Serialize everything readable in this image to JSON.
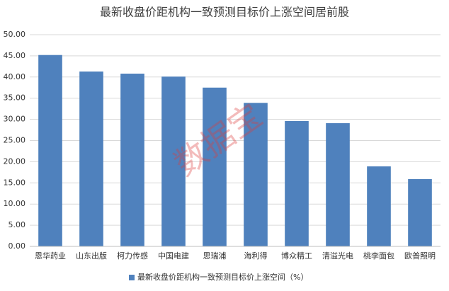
{
  "chart_data": {
    "type": "bar",
    "title": "最新收盘价距机构一致预测目标价上涨空间居前股",
    "watermark": "数据宝",
    "categories": [
      "恩华药业",
      "山东出版",
      "柯力传感",
      "中国电建",
      "思瑞浦",
      "海利得",
      "博众精工",
      "清溢光电",
      "桃李面包",
      "欧普照明"
    ],
    "series": [
      {
        "name": "最新收盘价距机构一致预测目标价上涨空间（%）",
        "color": "#4f81bd",
        "values": [
          45.2,
          41.3,
          40.8,
          40.1,
          37.5,
          33.9,
          29.6,
          29.1,
          18.9,
          15.9
        ]
      }
    ],
    "ylim": [
      0,
      50
    ],
    "yticks": [
      {
        "value": 0,
        "label": "0.00"
      },
      {
        "value": 5,
        "label": "5.00"
      },
      {
        "value": 10,
        "label": "10.00"
      },
      {
        "value": 15,
        "label": "15.00"
      },
      {
        "value": 20,
        "label": "20.00"
      },
      {
        "value": 25,
        "label": "25.00"
      },
      {
        "value": 30,
        "label": "30.00"
      },
      {
        "value": 35,
        "label": "35.00"
      },
      {
        "value": 40,
        "label": "40.00"
      },
      {
        "value": 45,
        "label": "45.00"
      },
      {
        "value": 50,
        "label": "50.00"
      }
    ],
    "grid": true,
    "legend": "bottom"
  }
}
